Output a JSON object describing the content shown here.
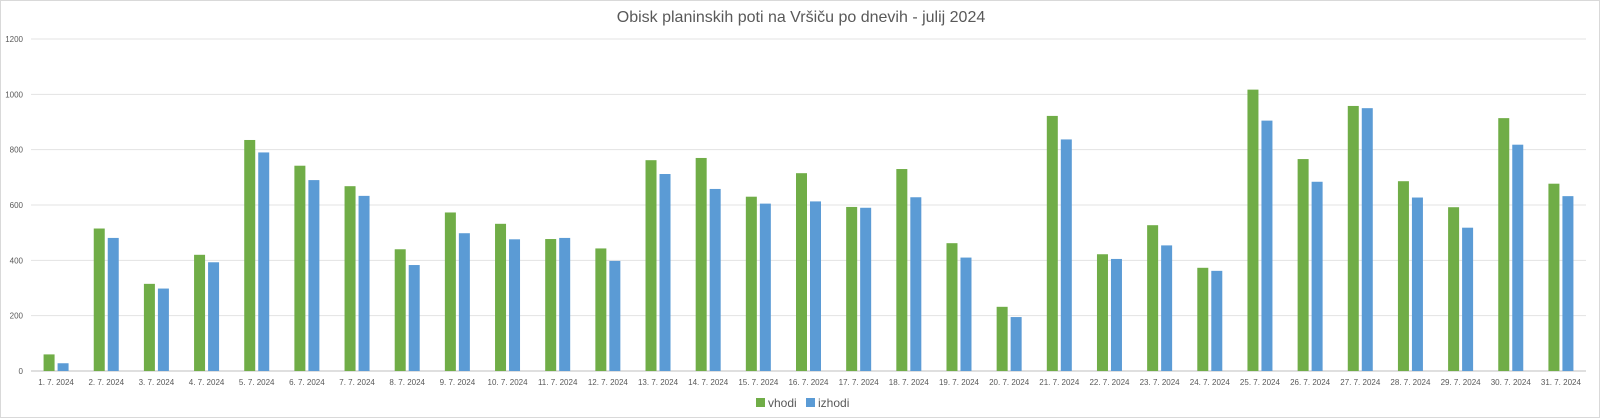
{
  "chart_data": {
    "type": "bar",
    "title": "Obisk planinskih poti na Vršiču po dnevih - julij 2024",
    "categories": [
      "1. 7. 2024",
      "2. 7. 2024",
      "3. 7. 2024",
      "4. 7. 2024",
      "5. 7. 2024",
      "6. 7. 2024",
      "7. 7. 2024",
      "8. 7. 2024",
      "9. 7. 2024",
      "10. 7. 2024",
      "11. 7. 2024",
      "12. 7. 2024",
      "13. 7. 2024",
      "14. 7. 2024",
      "15. 7. 2024",
      "16. 7. 2024",
      "17. 7. 2024",
      "18. 7. 2024",
      "19. 7. 2024",
      "20. 7. 2024",
      "21. 7. 2024",
      "22. 7. 2024",
      "23. 7. 2024",
      "24. 7. 2024",
      "25. 7. 2024",
      "26. 7. 2024",
      "27. 7. 2024",
      "28. 7. 2024",
      "29. 7. 2024",
      "30. 7. 2024",
      "31. 7. 2024"
    ],
    "series": [
      {
        "name": "vhodi",
        "color": "#70ad47",
        "values": [
          60,
          515,
          315,
          420,
          835,
          742,
          668,
          440,
          573,
          532,
          477,
          443,
          762,
          770,
          630,
          715,
          593,
          730,
          462,
          232,
          922,
          422,
          527,
          373,
          1017,
          766,
          958,
          686,
          592,
          914,
          677
        ]
      },
      {
        "name": "izhodi",
        "color": "#5b9bd5",
        "values": [
          28,
          481,
          298,
          393,
          790,
          690,
          633,
          383,
          498,
          476,
          481,
          398,
          712,
          658,
          605,
          613,
          590,
          628,
          410,
          195,
          837,
          405,
          454,
          362,
          905,
          684,
          950,
          627,
          518,
          818,
          632
        ]
      }
    ],
    "xlabel": "",
    "ylabel": "",
    "ylim": [
      0,
      1200
    ],
    "yticks": [
      0,
      200,
      400,
      600,
      800,
      1000,
      1200
    ],
    "grid": true,
    "legend": "bottom-center"
  }
}
